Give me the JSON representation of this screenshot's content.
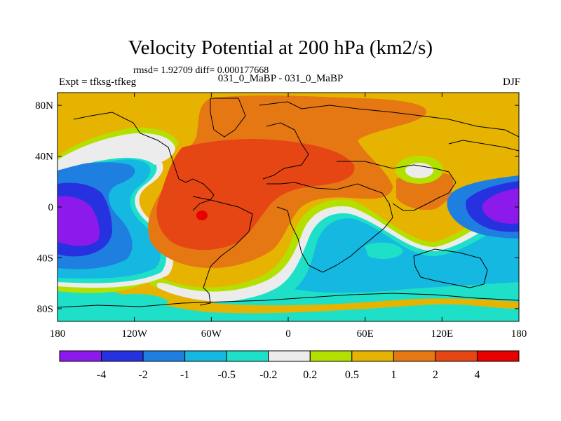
{
  "chart_data": {
    "type": "heatmap",
    "title": "Velocity Potential at 200 hPa (km2/s)",
    "stats": "rmsd= 1.92709 diff= 0.000177668",
    "subtitle_left": "Expt = tfksg-tfkeg",
    "subtitle_center": "031_0_MaBP - 031_0_MaBP",
    "subtitle_right": "DJF",
    "x_ticks": [
      {
        "value": -180,
        "label": "180"
      },
      {
        "value": -120,
        "label": "120W"
      },
      {
        "value": -60,
        "label": "60W"
      },
      {
        "value": 0,
        "label": "0"
      },
      {
        "value": 60,
        "label": "60E"
      },
      {
        "value": 120,
        "label": "120E"
      },
      {
        "value": 180,
        "label": "180"
      }
    ],
    "y_ticks": [
      {
        "value": 80,
        "label": "80N"
      },
      {
        "value": 40,
        "label": "40N"
      },
      {
        "value": 0,
        "label": "0"
      },
      {
        "value": -40,
        "label": "40S"
      },
      {
        "value": -80,
        "label": "80S"
      }
    ],
    "xlim": [
      -180,
      180
    ],
    "ylim": [
      -90,
      90
    ],
    "colorbar": {
      "levels": [
        "-4",
        "-2",
        "-1",
        "-0.5",
        "-0.2",
        "0.2",
        "0.5",
        "1",
        "2",
        "4"
      ],
      "colors": [
        "#8c1aeb",
        "#2632e0",
        "#1f7fe0",
        "#14b8e0",
        "#1ee0c8",
        "#ececec",
        "#b4e000",
        "#e6b400",
        "#e67814",
        "#e64614",
        "#e60000"
      ]
    }
  }
}
